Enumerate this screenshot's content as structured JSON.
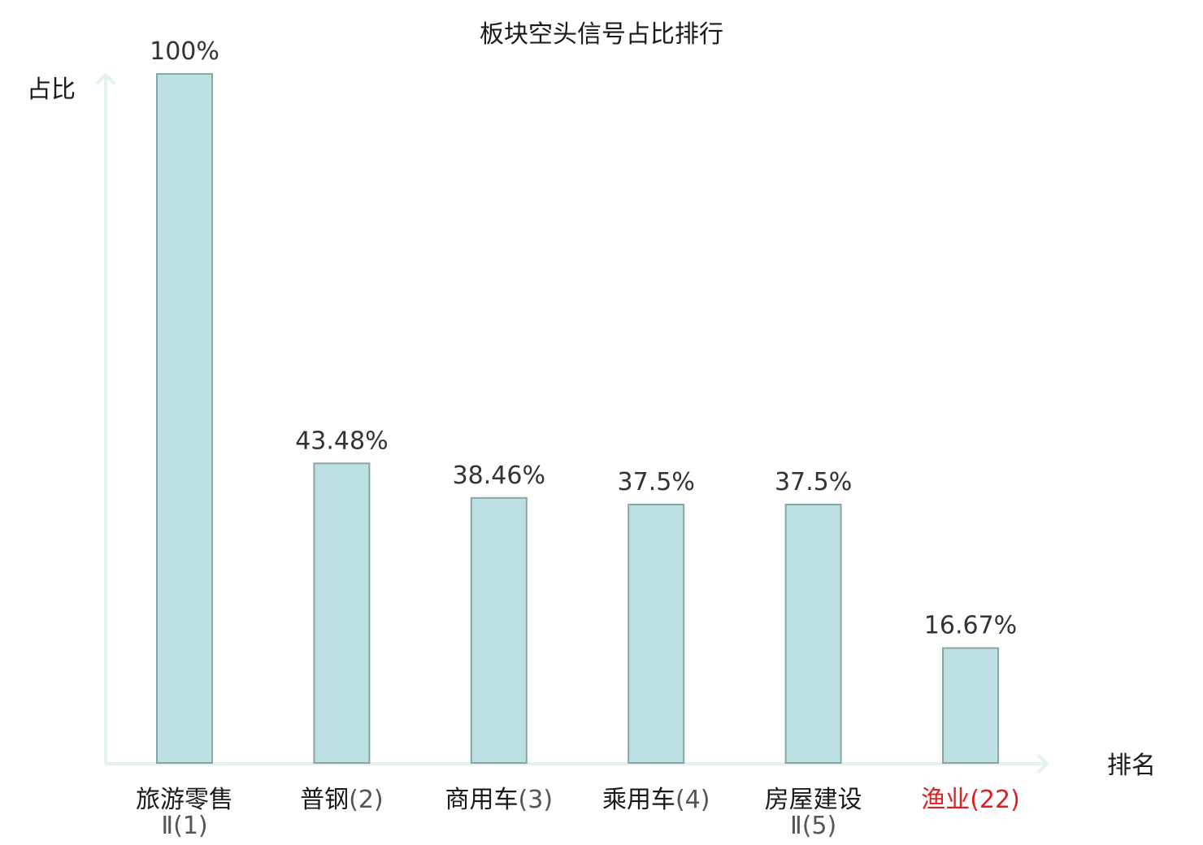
{
  "colors": {
    "bar_fill": "#bde0e3",
    "bar_stroke": "#8aa5a8",
    "axis": "#e2f2f0",
    "text": "#1a1a1a",
    "value_text": "#333333",
    "rank_text": "#555555",
    "highlight": "#e02020"
  },
  "chart_data": {
    "type": "bar",
    "title": "板块空头信号占比排行",
    "ylabel": "占比",
    "xlabel": "排名",
    "ylim": [
      0,
      100
    ],
    "grid": false,
    "categories": [
      {
        "name_line1": "旅游零售",
        "name_line2": "Ⅱ",
        "rank": "(1)",
        "highlight": false
      },
      {
        "name_line1": "普钢",
        "name_line2": "",
        "rank": "(2)",
        "highlight": false
      },
      {
        "name_line1": "商用车",
        "name_line2": "",
        "rank": "(3)",
        "highlight": false
      },
      {
        "name_line1": "乘用车",
        "name_line2": "",
        "rank": "(4)",
        "highlight": false
      },
      {
        "name_line1": "房屋建设",
        "name_line2": "Ⅱ",
        "rank": "(5)",
        "highlight": false
      },
      {
        "name_line1": "渔业",
        "name_line2": "",
        "rank": "(22)",
        "highlight": true
      }
    ],
    "values": [
      100,
      43.48,
      38.46,
      37.5,
      37.5,
      16.67
    ],
    "value_labels": [
      "100%",
      "43.48%",
      "38.46%",
      "37.5%",
      "37.5%",
      "16.67%"
    ]
  }
}
